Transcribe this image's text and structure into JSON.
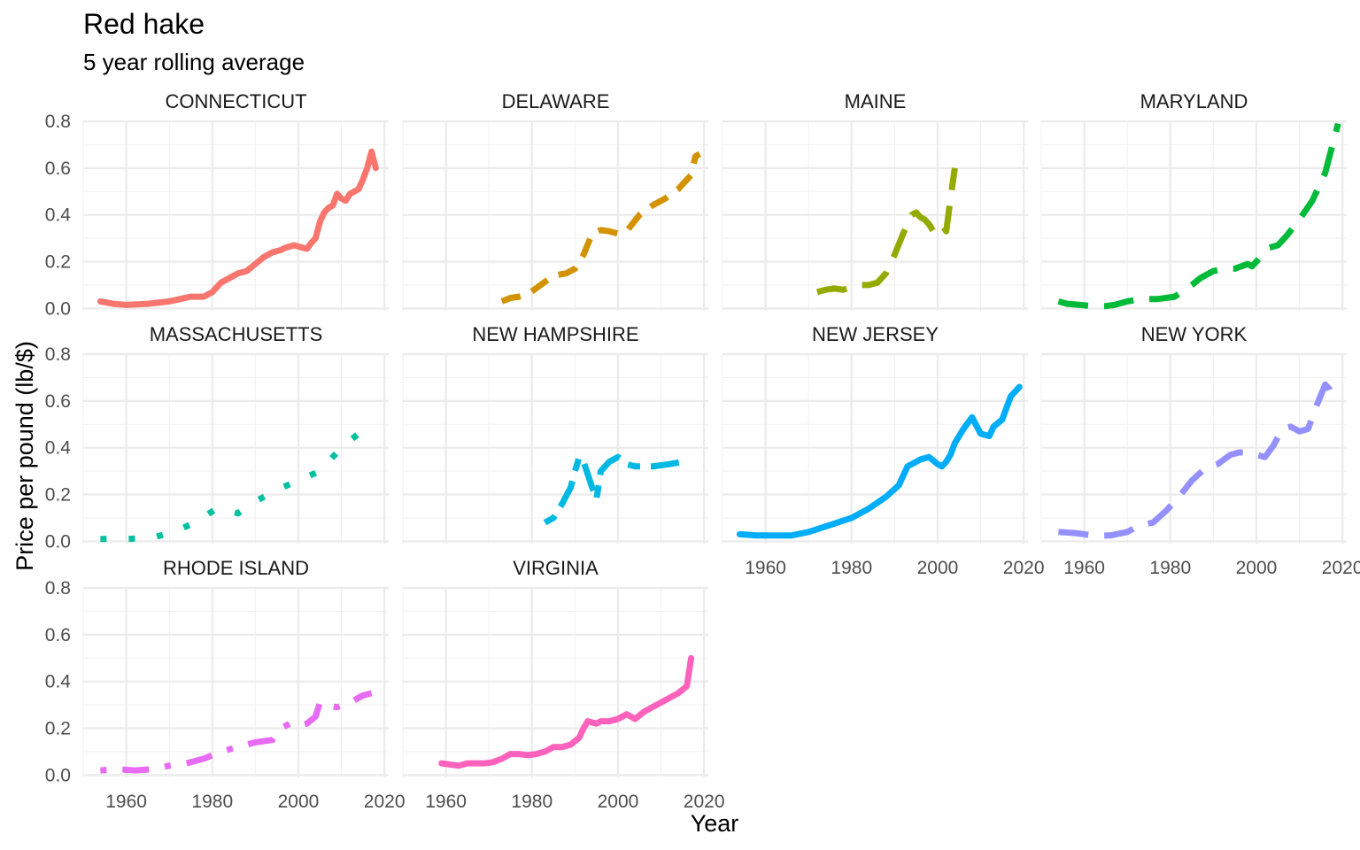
{
  "chart_data": {
    "type": "line",
    "title": "Red hake",
    "subtitle": "5 year rolling average",
    "xlabel": "Year",
    "ylabel": "Price per pound (lb/$)",
    "xlim": [
      1950,
      2021
    ],
    "ylim": [
      -0.01,
      0.8
    ],
    "x_ticks": [
      1960,
      1980,
      2000,
      2020
    ],
    "y_ticks": [
      0.0,
      0.2,
      0.4,
      0.6,
      0.8
    ],
    "x_tick_labels": [
      "1960",
      "1980",
      "2000",
      "2020"
    ],
    "y_tick_labels": [
      "0.0",
      "0.2",
      "0.4",
      "0.6",
      "0.8"
    ],
    "facets": [
      "CONNECTICUT",
      "DELAWARE",
      "MAINE",
      "MARYLAND",
      "MASSACHUSETTS",
      "NEW HAMPSHIRE",
      "NEW JERSEY",
      "NEW YORK",
      "RHODE ISLAND",
      "VIRGINIA"
    ],
    "series": [
      {
        "name": "CONNECTICUT",
        "color": "#F8766D",
        "dash": "solid",
        "x": [
          1954,
          1957,
          1960,
          1965,
          1970,
          1975,
          1978,
          1980,
          1982,
          1984,
          1986,
          1988,
          1990,
          1992,
          1994,
          1996,
          1997,
          1999,
          2001,
          2002,
          2003,
          2004,
          2005,
          2006,
          2007,
          2008,
          2009,
          2010,
          2011,
          2012,
          2013,
          2014,
          2015,
          2016,
          2017,
          2018
        ],
        "y": [
          0.03,
          0.02,
          0.015,
          0.02,
          0.03,
          0.05,
          0.05,
          0.07,
          0.11,
          0.13,
          0.15,
          0.16,
          0.19,
          0.22,
          0.24,
          0.25,
          0.26,
          0.27,
          0.26,
          0.255,
          0.28,
          0.3,
          0.37,
          0.41,
          0.43,
          0.44,
          0.49,
          0.47,
          0.46,
          0.49,
          0.5,
          0.51,
          0.55,
          0.6,
          0.67,
          0.6
        ]
      },
      {
        "name": "DELAWARE",
        "color": "#D39200",
        "dash": "dashed",
        "x": [
          1973,
          1975,
          1977,
          1979,
          1982,
          1985,
          1988,
          1990,
          1992,
          1994,
          1996,
          1998,
          2000,
          2002,
          2005,
          2008,
          2011,
          2014,
          2016,
          2017,
          2018,
          2019
        ],
        "y": [
          0.03,
          0.045,
          0.05,
          0.06,
          0.1,
          0.14,
          0.15,
          0.17,
          0.23,
          0.32,
          0.335,
          0.33,
          0.32,
          0.33,
          0.4,
          0.44,
          0.47,
          0.51,
          0.55,
          0.57,
          0.65,
          0.66
        ]
      },
      {
        "name": "MAINE",
        "color": "#93AA00",
        "dash": "longdash",
        "x": [
          1972,
          1974,
          1976,
          1978,
          1980,
          1982,
          1984,
          1986,
          1988,
          1990,
          1992,
          1994,
          1995,
          1996,
          1997,
          1998,
          1999,
          2000,
          2001,
          2002,
          2003,
          2004
        ],
        "y": [
          0.07,
          0.08,
          0.085,
          0.08,
          0.09,
          0.1,
          0.1,
          0.11,
          0.15,
          0.23,
          0.32,
          0.4,
          0.41,
          0.39,
          0.38,
          0.36,
          0.33,
          0.35,
          0.36,
          0.33,
          0.47,
          0.6
        ]
      },
      {
        "name": "MARYLAND",
        "color": "#00BA38",
        "dash": "longdash",
        "x": [
          1954,
          1956,
          1959,
          1962,
          1965,
          1967,
          1970,
          1973,
          1977,
          1981,
          1985,
          1987,
          1990,
          1993,
          1995,
          1998,
          1999,
          2001,
          2003,
          2005,
          2007,
          2010,
          2013,
          2016,
          2019
        ],
        "y": [
          0.03,
          0.02,
          0.015,
          0.01,
          0.01,
          0.015,
          0.03,
          0.04,
          0.04,
          0.05,
          0.1,
          0.13,
          0.16,
          0.17,
          0.17,
          0.19,
          0.18,
          0.22,
          0.26,
          0.27,
          0.31,
          0.38,
          0.46,
          0.58,
          0.79
        ]
      },
      {
        "name": "MASSACHUSETTS",
        "color": "#00C19F",
        "dash": "dotted",
        "x": [
          1954,
          1960,
          1966,
          1971,
          1976,
          1981,
          1986,
          1990,
          1995,
          2000,
          2005,
          2010,
          2014,
          2016
        ],
        "y": [
          0.01,
          0.01,
          0.015,
          0.04,
          0.08,
          0.14,
          0.12,
          0.17,
          0.22,
          0.26,
          0.3,
          0.4,
          0.46,
          0.48
        ]
      },
      {
        "name": "NEW HAMPSHIRE",
        "color": "#00B9E3",
        "dash": "twodash",
        "x": [
          1983,
          1985,
          1987,
          1989,
          1990,
          1991,
          1992,
          1994,
          1995,
          1996,
          1998,
          2000,
          2002,
          2004,
          2008,
          2012,
          2015
        ],
        "y": [
          0.08,
          0.1,
          0.16,
          0.23,
          0.3,
          0.36,
          0.34,
          0.23,
          0.18,
          0.3,
          0.34,
          0.36,
          0.33,
          0.32,
          0.32,
          0.33,
          0.34
        ]
      },
      {
        "name": "NEW JERSEY",
        "color": "#00ADFA",
        "dash": "solid",
        "x": [
          1954,
          1958,
          1962,
          1966,
          1970,
          1975,
          1980,
          1984,
          1988,
          1991,
          1993,
          1996,
          1998,
          2000,
          2001,
          2002,
          2003,
          2004,
          2006,
          2008,
          2010,
          2012,
          2013,
          2015,
          2017,
          2019
        ],
        "y": [
          0.03,
          0.025,
          0.025,
          0.025,
          0.04,
          0.07,
          0.1,
          0.14,
          0.19,
          0.24,
          0.32,
          0.35,
          0.36,
          0.33,
          0.32,
          0.34,
          0.37,
          0.42,
          0.48,
          0.53,
          0.46,
          0.45,
          0.49,
          0.52,
          0.62,
          0.66
        ]
      },
      {
        "name": "NEW YORK",
        "color": "#9590FF",
        "dash": "longdash",
        "x": [
          1954,
          1958,
          1962,
          1966,
          1970,
          1973,
          1976,
          1979,
          1982,
          1985,
          1988,
          1991,
          1994,
          1996,
          1998,
          2000,
          2002,
          2004,
          2006,
          2008,
          2010,
          2012,
          2014,
          2016,
          2017,
          2018
        ],
        "y": [
          0.04,
          0.035,
          0.025,
          0.025,
          0.04,
          0.07,
          0.08,
          0.13,
          0.19,
          0.26,
          0.31,
          0.33,
          0.37,
          0.38,
          0.38,
          0.37,
          0.36,
          0.41,
          0.48,
          0.49,
          0.47,
          0.48,
          0.58,
          0.67,
          0.65,
          0.6
        ]
      },
      {
        "name": "RHODE ISLAND",
        "color": "#E76BF3",
        "dash": "dotdash",
        "x": [
          1954,
          1958,
          1962,
          1966,
          1970,
          1974,
          1978,
          1982,
          1986,
          1990,
          1994,
          1996,
          1998,
          2000,
          2002,
          2004,
          2005,
          2006,
          2009,
          2012,
          2015,
          2017
        ],
        "y": [
          0.02,
          0.025,
          0.02,
          0.025,
          0.04,
          0.05,
          0.07,
          0.1,
          0.12,
          0.14,
          0.15,
          0.2,
          0.22,
          0.21,
          0.22,
          0.25,
          0.31,
          0.3,
          0.29,
          0.31,
          0.34,
          0.35
        ]
      },
      {
        "name": "VIRGINIA",
        "color": "#FF62BC",
        "dash": "solid",
        "x": [
          1959,
          1961,
          1963,
          1965,
          1967,
          1969,
          1971,
          1973,
          1975,
          1977,
          1979,
          1981,
          1983,
          1985,
          1987,
          1989,
          1991,
          1992,
          1993,
          1995,
          1996,
          1998,
          2000,
          2002,
          2004,
          2006,
          2008,
          2011,
          2014,
          2016,
          2017
        ],
        "y": [
          0.05,
          0.045,
          0.04,
          0.05,
          0.05,
          0.05,
          0.055,
          0.07,
          0.09,
          0.09,
          0.085,
          0.09,
          0.1,
          0.12,
          0.12,
          0.13,
          0.16,
          0.2,
          0.23,
          0.22,
          0.23,
          0.23,
          0.24,
          0.26,
          0.24,
          0.27,
          0.29,
          0.32,
          0.35,
          0.38,
          0.5
        ]
      }
    ]
  }
}
